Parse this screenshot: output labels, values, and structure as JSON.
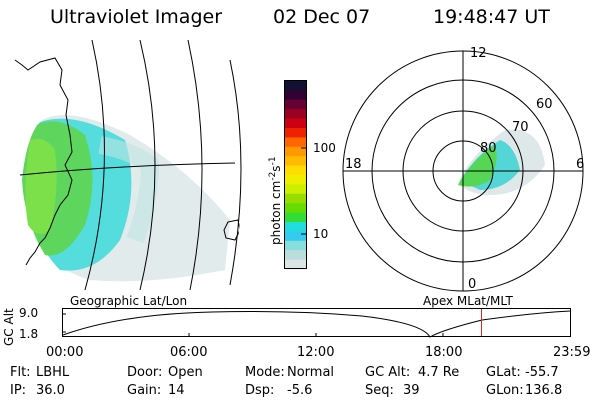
{
  "header": {
    "title": "Ultraviolet Imager",
    "date": "02 Dec 07",
    "time": "19:48:47 UT"
  },
  "colorbar": {
    "label": "photon cm",
    "label_sup1": "-2",
    "label_mid": "s",
    "label_sup2": "-1",
    "tick_100": "100",
    "tick_10": "10",
    "colors": [
      "#111133",
      "#330033",
      "#660033",
      "#990022",
      "#cc0011",
      "#ee2200",
      "#ff6600",
      "#ff9900",
      "#ffbb00",
      "#ffdd00",
      "#eeee00",
      "#ccee00",
      "#99dd00",
      "#66dd00",
      "#33dd33",
      "#22dddd",
      "#33ccee",
      "#88dddd",
      "#bbdddd",
      "#dde4e4"
    ]
  },
  "polar": {
    "hour_12": "12",
    "hour_18": "18",
    "hour_6": "6",
    "hour_0": "0",
    "lat_60": "60",
    "lat_70": "70",
    "lat_80": "80"
  },
  "map_labels": {
    "left": "Geographic Lat/Lon",
    "right": "Apex MLat/MLT"
  },
  "altitude_plot": {
    "axis_label": "GC Alt",
    "ymax": "9.0",
    "ymin": "1.8",
    "times": [
      "00:00",
      "06:00",
      "12:00",
      "18:00",
      "23:59"
    ],
    "marker_hours": 19.81
  },
  "status": {
    "flt_label": "Flt:",
    "flt_value": "LBHL",
    "door_label": "Door:",
    "door_value": "Open",
    "mode_label": "Mode:",
    "mode_value": "Normal",
    "gcalt_label": "GC Alt:",
    "gcalt_value": "4.7 Re",
    "glat_label": "GLat:",
    "glat_value": "-55.7",
    "ip_label": "IP:",
    "ip_value": "36.0",
    "gain_label": "Gain:",
    "gain_value": "14",
    "dsp_label": "Dsp:",
    "dsp_value": "-5.6",
    "seq_label": "Seq:",
    "seq_value": "39",
    "glon_label": "GLon:",
    "glon_value": "136.8"
  }
}
